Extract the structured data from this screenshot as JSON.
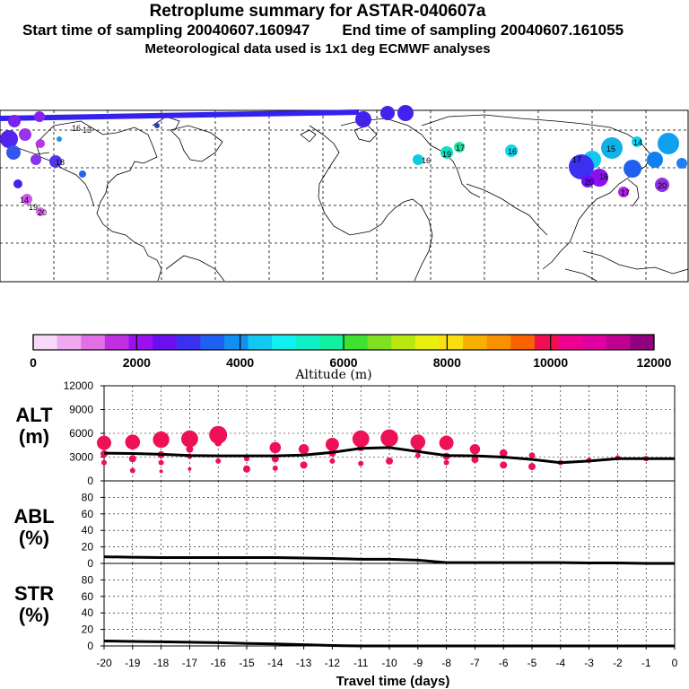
{
  "header": {
    "title": "Retroplume summary for ASTAR-040607a",
    "start_text": "Start time of sampling 20040607.160947",
    "end_text": "End time of sampling 20040607.161055",
    "met_text": "Meteorological data used is 1x1 deg ECMWF analyses"
  },
  "colors": {
    "plot_marker": "#ee1155",
    "line": "#000000",
    "map_track": "#3322ee"
  },
  "map": {
    "description_markers": [
      "16",
      "16",
      "16",
      "19",
      "20",
      "15",
      "16",
      "17",
      "20",
      "18",
      "19",
      "20",
      "14",
      "13"
    ]
  },
  "colorbar": {
    "label": "Altitude (m)",
    "ticks": [
      "0",
      "2000",
      "4000",
      "6000",
      "8000",
      "10000",
      "12000"
    ],
    "colors": [
      "#f8d8f8",
      "#f0a8f0",
      "#e070e8",
      "#c030e0",
      "#9a10f0",
      "#6a10f0",
      "#3c30f0",
      "#2060f0",
      "#1090f0",
      "#10c8f0",
      "#10f0f0",
      "#10f0c8",
      "#10f0a0",
      "#40e030",
      "#80e020",
      "#b8e810",
      "#e8f010",
      "#f8e010",
      "#f8b000",
      "#f89000",
      "#f86000",
      "#f01050",
      "#f00090",
      "#e000a0",
      "#c00090",
      "#900080"
    ]
  },
  "chart_data": [
    {
      "type": "line",
      "panel": "ALT",
      "ylabel_lines": [
        "ALT",
        "(m)"
      ],
      "ylim": [
        0,
        12000
      ],
      "yticks": [
        0,
        3000,
        6000,
        9000,
        12000
      ],
      "ytick_labels": [
        "0",
        "3000",
        "6000",
        "9000",
        "12000"
      ],
      "x": [
        -20,
        -19,
        -18,
        -17,
        -16,
        -15,
        -14,
        -13,
        -12,
        -11,
        -10,
        -9,
        -8,
        -7,
        -6,
        -5,
        -4,
        -3,
        -2,
        -1,
        0
      ],
      "series": [
        {
          "name": "median altitude",
          "values": [
            3500,
            3450,
            3350,
            3200,
            3150,
            3150,
            3150,
            3250,
            3600,
            4100,
            4200,
            3700,
            3200,
            3150,
            3000,
            2700,
            2300,
            2500,
            2800,
            2800,
            2800
          ]
        }
      ],
      "markers": [
        {
          "x": -20,
          "y": [
            4800,
            3400,
            2300
          ]
        },
        {
          "x": -19,
          "y": [
            4900,
            2800,
            1300
          ]
        },
        {
          "x": -18,
          "y": [
            5200,
            3300,
            2300,
            1200
          ]
        },
        {
          "x": -17,
          "y": [
            5300,
            4000,
            3100,
            1500
          ]
        },
        {
          "x": -16,
          "y": [
            5800,
            4800,
            2500
          ]
        },
        {
          "x": -15,
          "y": [
            2800,
            1500
          ]
        },
        {
          "x": -14,
          "y": [
            4200,
            2800,
            1600
          ]
        },
        {
          "x": -13,
          "y": [
            4000,
            2000
          ]
        },
        {
          "x": -12,
          "y": [
            4600,
            3500,
            2500
          ]
        },
        {
          "x": -11,
          "y": [
            5300,
            4200,
            2200
          ]
        },
        {
          "x": -10,
          "y": [
            5400,
            2500
          ]
        },
        {
          "x": -9,
          "y": [
            4900,
            4000,
            3200
          ]
        },
        {
          "x": -8,
          "y": [
            4800,
            3100,
            2300
          ]
        },
        {
          "x": -7,
          "y": [
            4000,
            2700
          ]
        },
        {
          "x": -6,
          "y": [
            3500,
            2000
          ]
        },
        {
          "x": -5,
          "y": [
            3200,
            1800
          ]
        },
        {
          "x": -4,
          "y": [
            2300
          ]
        },
        {
          "x": -3,
          "y": [
            2600
          ]
        },
        {
          "x": -2,
          "y": [
            2900
          ]
        },
        {
          "x": -1,
          "y": [
            2800
          ]
        }
      ]
    },
    {
      "type": "line",
      "panel": "ABL",
      "ylabel_lines": [
        "ABL",
        "(%)"
      ],
      "ylim": [
        0,
        100
      ],
      "yticks": [
        0,
        20,
        40,
        60,
        80
      ],
      "ytick_labels": [
        "0",
        "20",
        "40",
        "60",
        "80"
      ],
      "x": [
        -20,
        -19,
        -18,
        -17,
        -16,
        -15,
        -14,
        -13,
        -12,
        -11,
        -10,
        -9,
        -8,
        -7,
        -6,
        -5,
        -4,
        -3,
        -2,
        -1,
        0
      ],
      "series": [
        {
          "name": "fraction in boundary layer",
          "values": [
            8,
            7.5,
            7,
            7,
            7,
            7,
            7,
            6.5,
            6,
            5,
            5,
            4,
            1,
            1,
            1,
            1,
            1,
            0.5,
            0.5,
            0,
            0
          ]
        }
      ]
    },
    {
      "type": "line",
      "panel": "STR",
      "ylabel_lines": [
        "STR",
        "(%)"
      ],
      "ylim": [
        0,
        100
      ],
      "yticks": [
        0,
        20,
        40,
        60,
        80
      ],
      "ytick_labels": [
        "0",
        "20",
        "40",
        "60",
        "80"
      ],
      "x": [
        -20,
        -19,
        -18,
        -17,
        -16,
        -15,
        -14,
        -13,
        -12,
        -11,
        -10,
        -9,
        -8,
        -7,
        -6,
        -5,
        -4,
        -3,
        -2,
        -1,
        0
      ],
      "series": [
        {
          "name": "fraction in stratosphere",
          "values": [
            6,
            5.5,
            5,
            4.5,
            4,
            3,
            2.5,
            1.5,
            0.5,
            0,
            0,
            0,
            0,
            0,
            0,
            0,
            0,
            0,
            0,
            0,
            0
          ]
        }
      ],
      "xlabel": "Travel time (days)",
      "xtick_labels": [
        "-20",
        "-19",
        "-18",
        "-17",
        "-16",
        "-15",
        "-14",
        "-13",
        "-12",
        "-11",
        "-10",
        "-9",
        "-8",
        "-7",
        "-6",
        "-5",
        "-4",
        "-3",
        "-2",
        "-1",
        "0"
      ]
    }
  ]
}
